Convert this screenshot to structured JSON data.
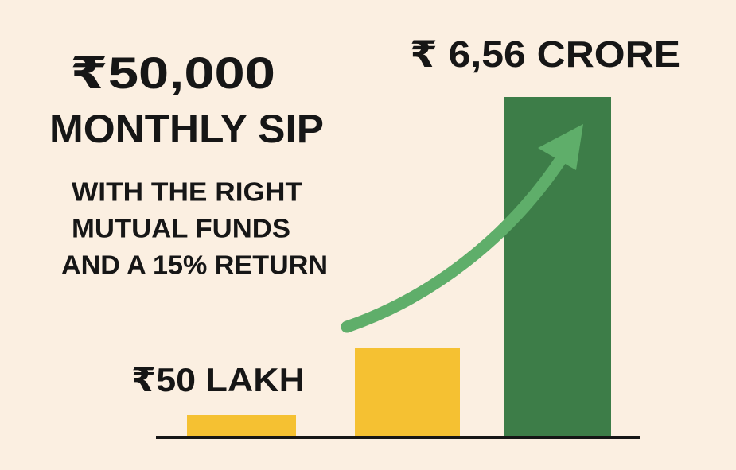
{
  "headline": {
    "amount": "₹50,000",
    "label": "MONTHLY SIP"
  },
  "subtext": {
    "lines": [
      "WITH THE RIGHT",
      "MUTUAL FUNDS",
      "AND A 15% RETURN"
    ]
  },
  "labels": {
    "start": "₹50 LAKH",
    "end": "₹ 6,56 CRORE"
  }
}
